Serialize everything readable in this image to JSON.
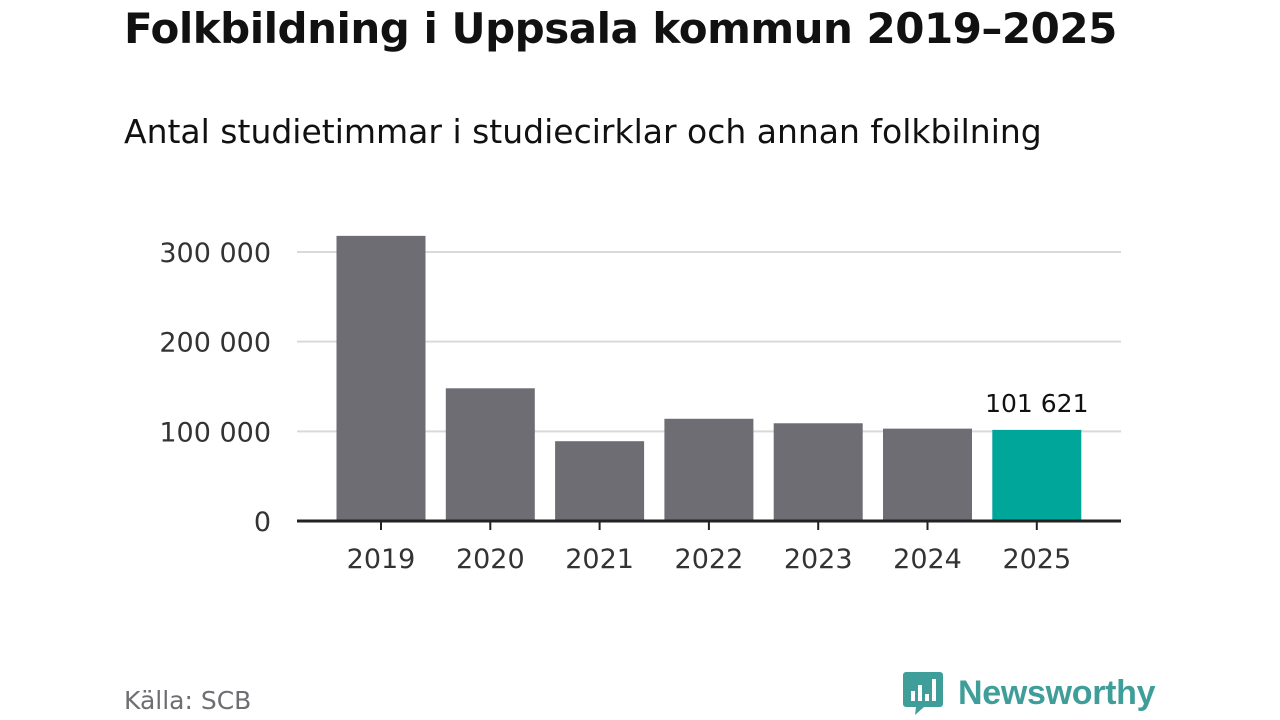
{
  "header": {
    "title": "Folkbildning i Uppsala kommun 2019–2025",
    "subtitle": "Antal studietimmar i studiecirklar och annan folkbilning"
  },
  "footer": {
    "source": "Källa: SCB",
    "brand": "Newsworthy"
  },
  "colors": {
    "bar": "#6e6d73",
    "highlight": "#00a699",
    "grid": "#d9d9d9",
    "axis": "#222222",
    "brand": "#3f9e9a"
  },
  "chart_data": {
    "type": "bar",
    "title": "Folkbildning i Uppsala kommun 2019–2025",
    "subtitle": "Antal studietimmar i studiecirklar och annan folkbilning",
    "categories": [
      "2019",
      "2020",
      "2021",
      "2022",
      "2023",
      "2024",
      "2025"
    ],
    "values": [
      318000,
      148000,
      89000,
      114000,
      109000,
      103000,
      101621
    ],
    "highlight_index": 6,
    "highlight_label": "101 621",
    "ylim": [
      0,
      300000
    ],
    "yticks": [
      0,
      100000,
      200000,
      300000
    ],
    "ytick_labels": [
      "0",
      "100 000",
      "200 000",
      "300 000"
    ],
    "grid": true,
    "legend": "none"
  }
}
